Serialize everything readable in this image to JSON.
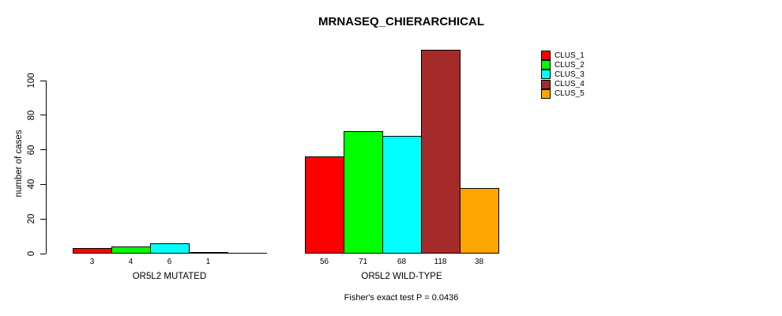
{
  "title": "MRNASEQ_CHIERARCHICAL",
  "y_axis": {
    "label": "number of cases",
    "ticks": [
      "0",
      "20",
      "40",
      "60",
      "80",
      "100"
    ]
  },
  "legend": {
    "items": [
      {
        "label": "CLUS_1",
        "color": "#FF0000"
      },
      {
        "label": "CLUS_2",
        "color": "#00FF00"
      },
      {
        "label": "CLUS_3",
        "color": "#00FFFF"
      },
      {
        "label": "CLUS_4",
        "color": "#A52A2A"
      },
      {
        "label": "CLUS_5",
        "color": "#FFA500"
      }
    ]
  },
  "footer": {
    "annotation": "Fisher's exact test P = 0.0436"
  },
  "chart_data": {
    "type": "bar",
    "title": "MRNASEQ_CHIERARCHICAL",
    "xlabel": "",
    "ylabel": "number of cases",
    "categories": [
      "OR5L2 MUTATED",
      "OR5L2 WILD-TYPE"
    ],
    "series": [
      {
        "name": "CLUS_1",
        "color": "#FF0000",
        "values": [
          3,
          56
        ]
      },
      {
        "name": "CLUS_2",
        "color": "#00FF00",
        "values": [
          4,
          71
        ]
      },
      {
        "name": "CLUS_3",
        "color": "#00FFFF",
        "values": [
          6,
          68
        ]
      },
      {
        "name": "CLUS_4",
        "color": "#A52A2A",
        "values": [
          1,
          118
        ]
      },
      {
        "name": "CLUS_5",
        "color": "#FFA500",
        "values": [
          0,
          38
        ]
      }
    ],
    "bar_value_labels": [
      [
        "3",
        "4",
        "6",
        "1",
        ""
      ],
      [
        "56",
        "71",
        "68",
        "118",
        "38"
      ]
    ],
    "yticks": [
      0,
      20,
      40,
      60,
      80,
      100
    ],
    "ylim": [
      0,
      100
    ],
    "grid": false,
    "legend_position": "top-right",
    "legend_entries": [
      "CLUS_1",
      "CLUS_2",
      "CLUS_3",
      "CLUS_4",
      "CLUS_5"
    ],
    "annotation": "Fisher's exact test P = 0.0436"
  }
}
